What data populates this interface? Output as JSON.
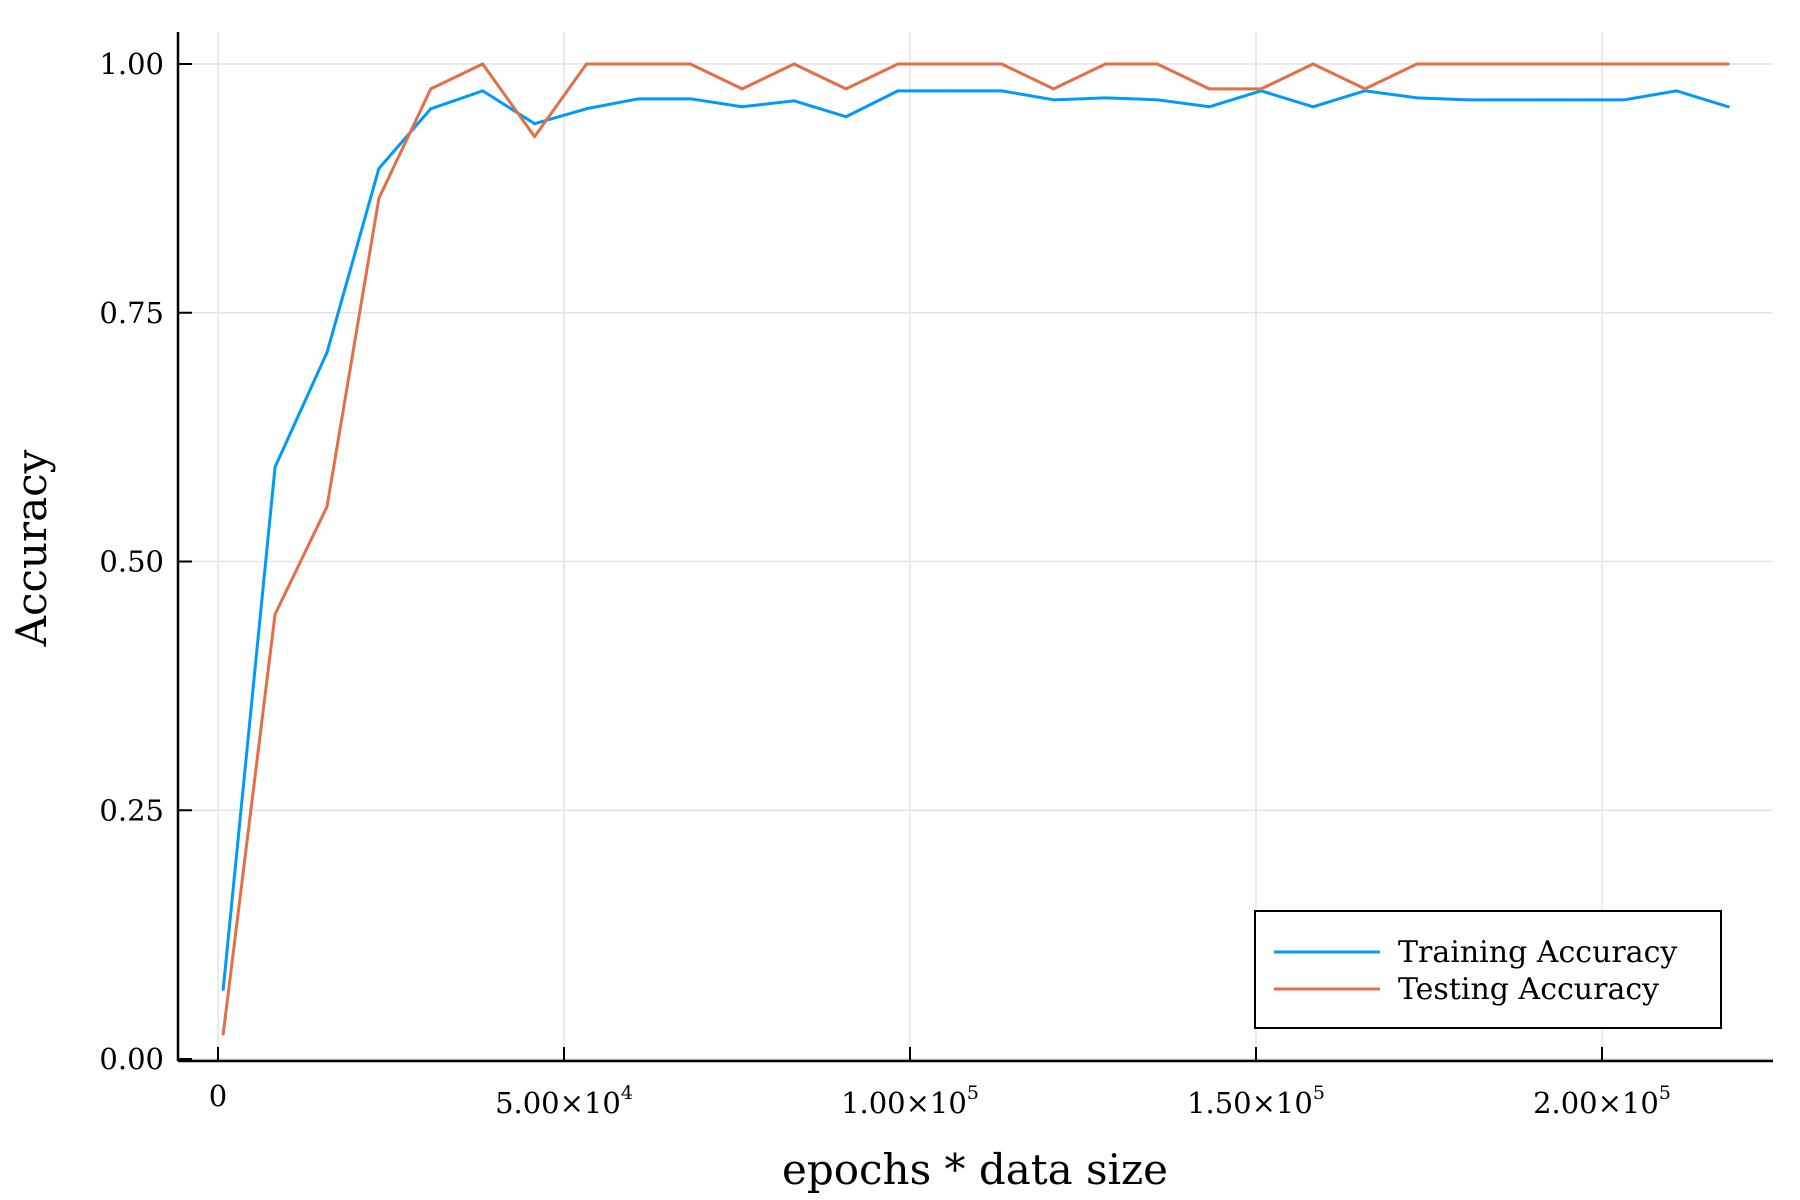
{
  "chart_data": {
    "type": "line",
    "xlabel": "epochs * data size",
    "ylabel": "Accuracy",
    "xlim": [
      -6000,
      225000
    ],
    "ylim": [
      0,
      1.0
    ],
    "grid": true,
    "legend_position": "bottom-right",
    "x_ticks": [
      {
        "value": 0,
        "mantissa": "0",
        "exponent": ""
      },
      {
        "value": 50000,
        "mantissa": "5.00×10",
        "exponent": "4"
      },
      {
        "value": 100000,
        "mantissa": "1.00×10",
        "exponent": "5"
      },
      {
        "value": 150000,
        "mantissa": "1.50×10",
        "exponent": "5"
      },
      {
        "value": 200000,
        "mantissa": "2.00×10",
        "exponent": "5"
      }
    ],
    "y_ticks": [
      {
        "value": 0.0,
        "label": "0.00"
      },
      {
        "value": 0.25,
        "label": "0.25"
      },
      {
        "value": 0.5,
        "label": "0.50"
      },
      {
        "value": 0.75,
        "label": "0.75"
      },
      {
        "value": 1.0,
        "label": "1.00"
      }
    ],
    "x": [
      750,
      8250,
      15750,
      23250,
      30750,
      38250,
      45750,
      53250,
      60750,
      68250,
      75750,
      83250,
      90750,
      98250,
      105750,
      113250,
      120750,
      128250,
      135750,
      143250,
      150750,
      158250,
      165750,
      173250,
      180750,
      188250,
      195750,
      203250,
      210750,
      218250
    ],
    "series": [
      {
        "name": "Training Accuracy",
        "color": "#009AFA",
        "values": [
          0.07,
          0.595,
          0.71,
          0.895,
          0.955,
          0.973,
          0.94,
          0.955,
          0.965,
          0.965,
          0.957,
          0.963,
          0.947,
          0.973,
          0.973,
          0.973,
          0.964,
          0.966,
          0.964,
          0.957,
          0.973,
          0.957,
          0.973,
          0.966,
          0.964,
          0.964,
          0.964,
          0.964,
          0.973,
          0.957
        ]
      },
      {
        "name": "Testing Accuracy",
        "color": "#E26F46",
        "values": [
          0.025,
          0.447,
          0.555,
          0.865,
          0.975,
          1.0,
          0.927,
          1.0,
          1.0,
          1.0,
          0.975,
          1.0,
          0.975,
          1.0,
          1.0,
          1.0,
          0.975,
          1.0,
          1.0,
          0.975,
          0.975,
          1.0,
          0.975,
          1.0,
          1.0,
          1.0,
          1.0,
          1.0,
          1.0,
          1.0
        ]
      }
    ]
  }
}
